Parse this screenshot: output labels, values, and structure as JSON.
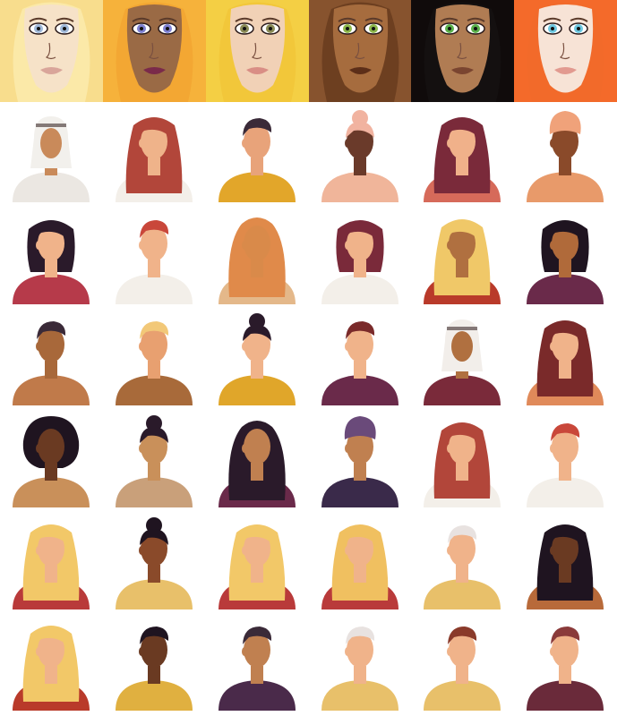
{
  "sheet": {
    "background": "#ffffff",
    "faces": [
      {
        "name": "face-blonde-blue-eyes",
        "bg": "#fbe9a8",
        "hair": "#f7dc8a",
        "skin": "#f6e2c8",
        "iris": "#9fb8d8",
        "lips": "#d9a59a"
      },
      {
        "name": "face-golden-hair-violet-eyes",
        "bg": "#f3a733",
        "hair": "#f6b43c",
        "skin": "#9a6a45",
        "iris": "#7c7fd0",
        "lips": "#7a2a4a"
      },
      {
        "name": "face-curly-blonde-hazel-eyes",
        "bg": "#f2c73a",
        "hair": "#f4cf46",
        "skin": "#f1d1b6",
        "iris": "#8a8a55",
        "lips": "#d98e85"
      },
      {
        "name": "face-curly-brown-green-eyes",
        "bg": "#6d3f20",
        "hair": "#8a5530",
        "skin": "#a66c3e",
        "iris": "#8cb64a",
        "lips": "#5c2e18"
      },
      {
        "name": "face-dark-hair-green-eyes",
        "bg": "#141010",
        "hair": "#0f0b0b",
        "skin": "#b07c53",
        "iris": "#5ab04a",
        "lips": "#7a4530"
      },
      {
        "name": "face-red-hair-blue-eyes",
        "bg": "#f26a2a",
        "hair": "#f46a2a",
        "skin": "#f7e3d6",
        "iris": "#6cc7e0",
        "lips": "#e29a90"
      }
    ],
    "avatars": [
      {
        "name": "avatar-man-white-keffiyeh",
        "skin": "#c98a5a",
        "hair": "#f2f0ec",
        "shirt": "#ebe7e2",
        "style": "headwrap-white"
      },
      {
        "name": "avatar-woman-long-red-hair",
        "skin": "#efb38a",
        "hair": "#b2463a",
        "shirt": "#f3efe9",
        "style": "long"
      },
      {
        "name": "avatar-man-dark-hair-profile",
        "skin": "#e8a37a",
        "hair": "#3a2a38",
        "shirt": "#e2a62a",
        "style": "short"
      },
      {
        "name": "avatar-woman-pink-headscarf-back",
        "skin": "#6a3a2a",
        "hair": "#f1b3a0",
        "shirt": "#f0b59a",
        "style": "bun"
      },
      {
        "name": "avatar-woman-maroon-hair",
        "skin": "#f0b18a",
        "hair": "#7a2a3a",
        "shirt": "#d66a5a",
        "style": "long"
      },
      {
        "name": "avatar-woman-orange-turban",
        "skin": "#8a4a2a",
        "hair": "#f0a27a",
        "shirt": "#e89a6a",
        "style": "turban"
      },
      {
        "name": "avatar-woman-black-bob",
        "skin": "#f0b38a",
        "hair": "#2a1a2a",
        "shirt": "#b63a4a",
        "style": "bob"
      },
      {
        "name": "avatar-man-red-curly-hair",
        "skin": "#f0b38a",
        "hair": "#c9473a",
        "shirt": "#f3efe9",
        "style": "short"
      },
      {
        "name": "avatar-woman-orange-hijab",
        "skin": "#d98a4a",
        "hair": "#e08a4a",
        "shirt": "#e4b88a",
        "style": "hijab"
      },
      {
        "name": "avatar-woman-maroon-bob",
        "skin": "#f0b38a",
        "hair": "#7a2a3a",
        "shirt": "#f3efe9",
        "style": "bob"
      },
      {
        "name": "avatar-man-blonde-braids",
        "skin": "#b07040",
        "hair": "#f0c868",
        "shirt": "#b93a2a",
        "style": "long"
      },
      {
        "name": "avatar-woman-black-hair-hoop",
        "skin": "#b06a3a",
        "hair": "#1f1420",
        "shirt": "#6a2a4a",
        "style": "bob"
      },
      {
        "name": "avatar-man-bun-beard",
        "skin": "#a8683a",
        "hair": "#3a2a38",
        "shirt": "#c07a4a",
        "style": "short"
      },
      {
        "name": "avatar-man-blonde-profile",
        "skin": "#e8a070",
        "hair": "#f2c878",
        "shirt": "#a86a3a",
        "style": "short"
      },
      {
        "name": "avatar-woman-top-bun",
        "skin": "#f0b38a",
        "hair": "#2a1a2a",
        "shirt": "#e0a62a",
        "style": "bun"
      },
      {
        "name": "avatar-man-bearded-brown",
        "skin": "#f0b38a",
        "hair": "#7a2a2a",
        "shirt": "#6a2a4a",
        "style": "short"
      },
      {
        "name": "avatar-man-white-headscarf",
        "skin": "#b07040",
        "hair": "#f2eeea",
        "shirt": "#7a2a3a",
        "style": "headwrap-white"
      },
      {
        "name": "avatar-woman-long-brown-hair-cap",
        "skin": "#f0b38a",
        "hair": "#7a2a2a",
        "shirt": "#e08a5a",
        "style": "long"
      },
      {
        "name": "avatar-man-afro",
        "skin": "#6a3a22",
        "hair": "#1f1420",
        "shirt": "#c9905a",
        "style": "afro"
      },
      {
        "name": "avatar-woman-low-bun",
        "skin": "#c9905a",
        "hair": "#2a1a2a",
        "shirt": "#c9a07a",
        "style": "bun"
      },
      {
        "name": "avatar-woman-black-hijab",
        "skin": "#c08050",
        "hair": "#2a1a2a",
        "shirt": "#6a2a4a",
        "style": "hijab"
      },
      {
        "name": "avatar-man-purple-cap-beard",
        "skin": "#c08050",
        "hair": "#6a4a7a",
        "shirt": "#3a2a4a",
        "style": "turban"
      },
      {
        "name": "avatar-woman-long-wavy-red",
        "skin": "#f0b38a",
        "hair": "#b2463a",
        "shirt": "#f3efe9",
        "style": "long"
      },
      {
        "name": "avatar-man-curly-red-hair",
        "skin": "#f0b38a",
        "hair": "#c9473a",
        "shirt": "#f3efe9",
        "style": "short"
      },
      {
        "name": "avatar-woman-long-blonde-back",
        "skin": "#f0b38a",
        "hair": "#f2c868",
        "shirt": "#b93a3a",
        "style": "long"
      },
      {
        "name": "avatar-woman-high-bun-dark",
        "skin": "#8a4a2a",
        "hair": "#1f1420",
        "shirt": "#e8c06a",
        "style": "bun"
      },
      {
        "name": "avatar-woman-blonde-ponytail",
        "skin": "#f0b38a",
        "hair": "#f2c868",
        "shirt": "#b93a3a",
        "style": "long"
      },
      {
        "name": "avatar-man-blonde-dreads",
        "skin": "#f0b38a",
        "hair": "#f0c060",
        "shirt": "#b93a3a",
        "style": "long"
      },
      {
        "name": "avatar-man-white-hair-glasses",
        "skin": "#f0b38a",
        "hair": "#e8e2e0",
        "shirt": "#e8c06a",
        "style": "short"
      },
      {
        "name": "avatar-woman-braids-dark",
        "skin": "#6a3a22",
        "hair": "#1f1420",
        "shirt": "#b86a3a",
        "style": "long"
      },
      {
        "name": "avatar-woman-long-blonde",
        "skin": "#f0b38a",
        "hair": "#f2c868",
        "shirt": "#b93a2a",
        "style": "long"
      },
      {
        "name": "avatar-man-dark-short",
        "skin": "#6a3a22",
        "hair": "#1f1420",
        "shirt": "#e0b040",
        "style": "short"
      },
      {
        "name": "avatar-man-beard-glasses-dark",
        "skin": "#c08050",
        "hair": "#3a2a38",
        "shirt": "#4a2a4a",
        "style": "short"
      },
      {
        "name": "avatar-man-grey-hair-glasses",
        "skin": "#f0b38a",
        "hair": "#e8e2e0",
        "shirt": "#e8c06a",
        "style": "short"
      },
      {
        "name": "avatar-man-brown-hair-beard",
        "skin": "#f0b38a",
        "hair": "#8a3a2a",
        "shirt": "#e8c06a",
        "style": "short"
      },
      {
        "name": "avatar-man-headphones",
        "skin": "#f0b38a",
        "hair": "#8a3a3a",
        "shirt": "#6a2a3a",
        "style": "short"
      }
    ]
  }
}
